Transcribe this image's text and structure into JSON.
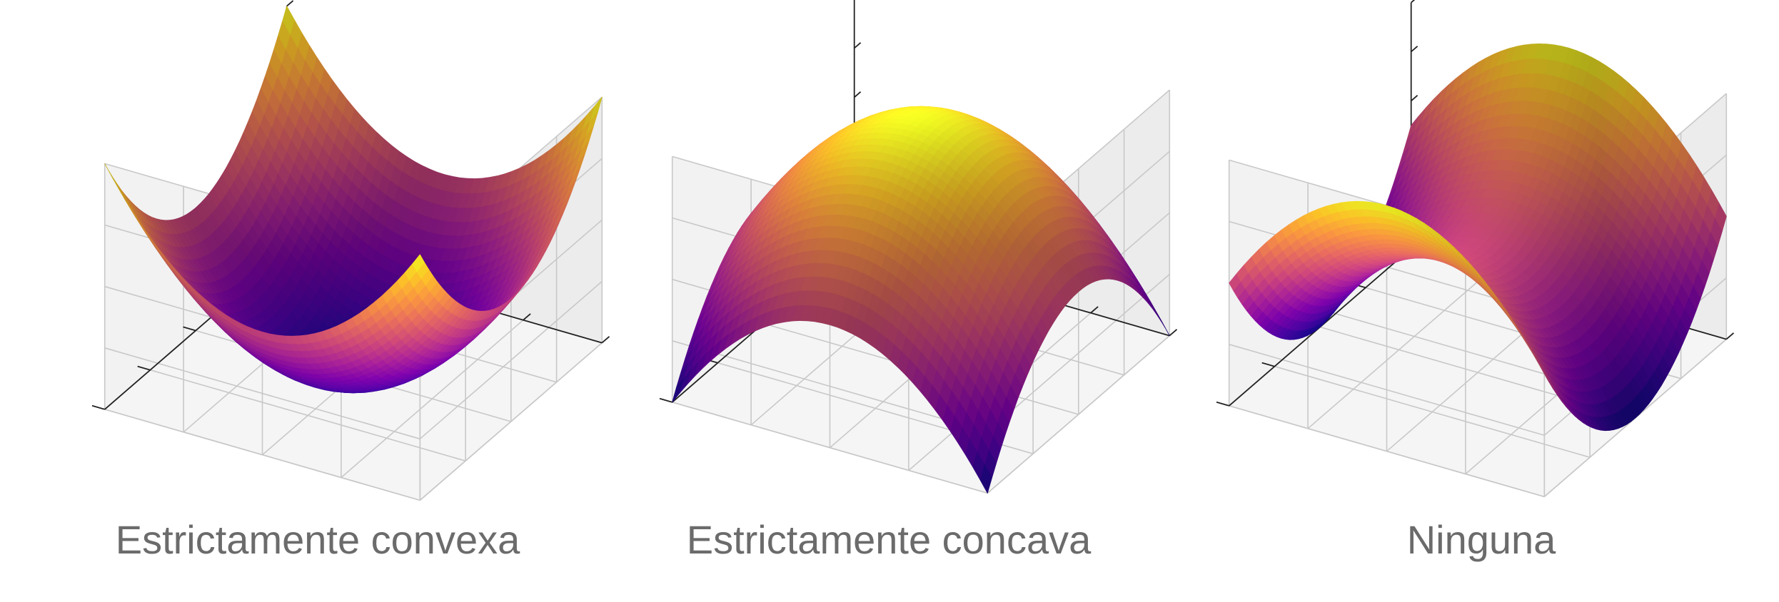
{
  "chart_data": [
    {
      "type": "surface",
      "caption": "Estrictamente convexa",
      "function": "x^2 + y^2",
      "x": [
        -1,
        1
      ],
      "y": [
        -1,
        1
      ],
      "grid": true,
      "tick_labels": false,
      "colormap": "plasma"
    },
    {
      "type": "surface",
      "caption": "Estrictamente concava",
      "function": "-(x^2 + y^2)",
      "x": [
        -1,
        1
      ],
      "y": [
        -1,
        1
      ],
      "grid": true,
      "tick_labels": false,
      "colormap": "plasma"
    },
    {
      "type": "surface",
      "caption": "Ninguna",
      "function": "x^2 - y^2",
      "x": [
        -1,
        1
      ],
      "y": [
        -1,
        1
      ],
      "grid": true,
      "tick_labels": false,
      "colormap": "plasma"
    }
  ]
}
